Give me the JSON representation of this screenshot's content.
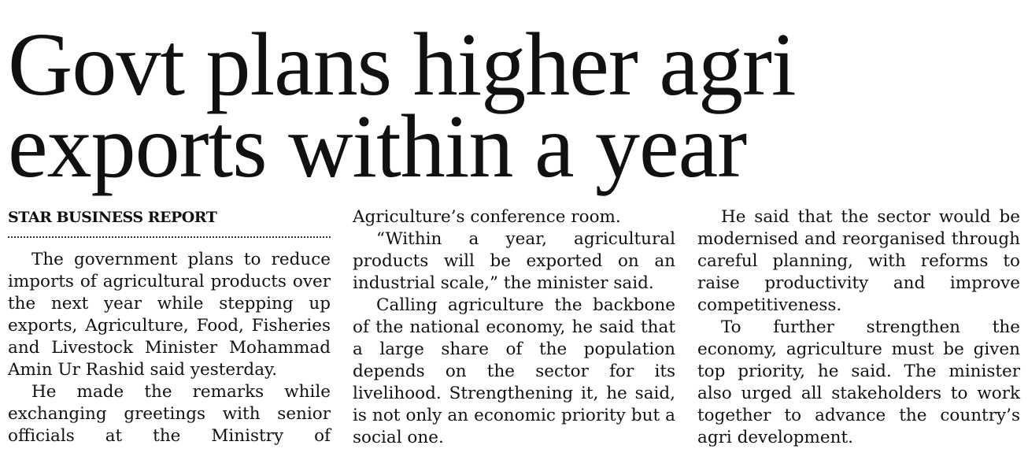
{
  "header": {
    "headline": [
      "Govt plans higher agri",
      "exports within a year"
    ],
    "byline": "STAR BUSINESS REPORT"
  },
  "columns": [
    [
      "The government plans to reduce imports of agricultural products over the next year while stepping up exports, Agriculture, Food, Fisheries and Livestock Minister Mohammad Amin Ur Rashid said yesterday.",
      "He made the remarks while exchanging greetings with senior officials at the Ministry of"
    ],
    [
      "Agriculture’s conference room.",
      "“Within a year, agricultural products will be exported on an industrial scale,” the minister said.",
      "Calling agriculture the backbone of the national economy, he said that a large share of the population depends on the sector for its livelihood. Strengthening it, he said, is not only an economic priority but a social one."
    ],
    [
      "He said that the sector would be modernised and reorganised through careful planning, with reforms to raise productivity and improve competitiveness.",
      "To further strengthen the economy, agriculture must be given top priority, he said. The minister also urged all stakeholders to work together to advance the country’s agri development."
    ]
  ]
}
